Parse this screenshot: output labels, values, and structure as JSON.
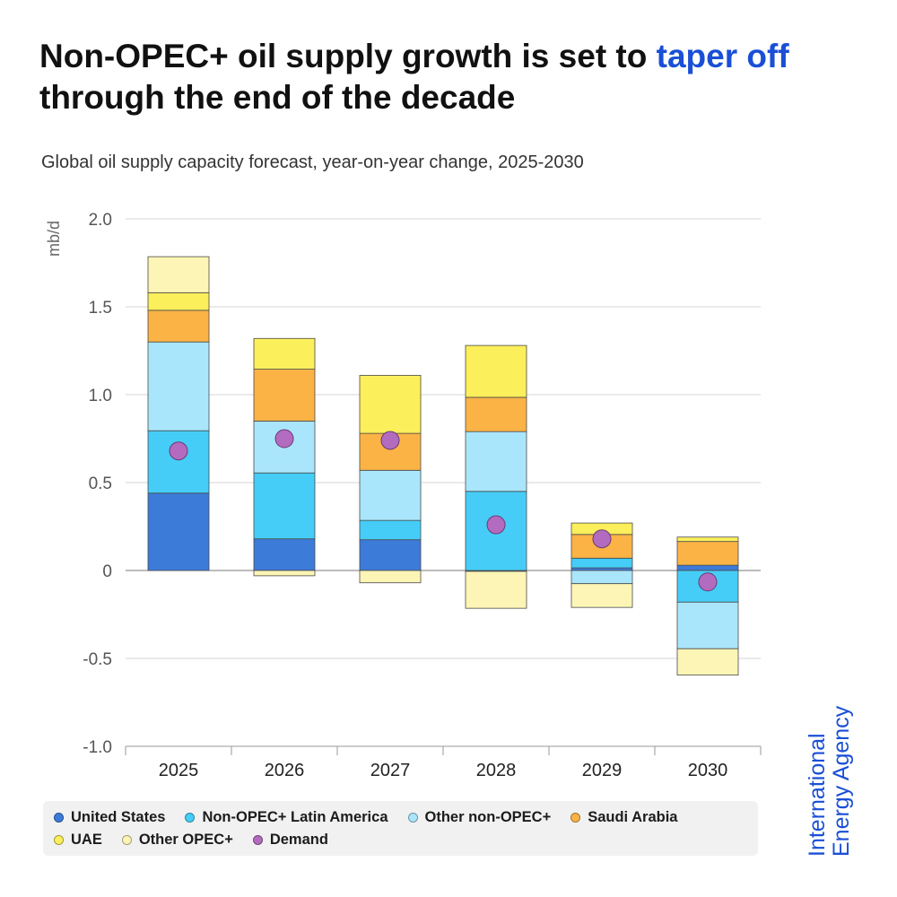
{
  "title": {
    "prefix": "Non-OPEC+ oil supply growth is set to ",
    "highlight": "taper off",
    "suffix": " through the end of the decade"
  },
  "subtitle": "Global oil supply capacity forecast, year-on-year change, 2025-2030",
  "logo": {
    "line1": "International",
    "line2": "Energy Agency"
  },
  "colors": {
    "accent": "#1a4fd6",
    "united_states": "#3d7bd9",
    "latam": "#45cdf7",
    "other_non_opec": "#aae6fb",
    "saudi": "#fbb346",
    "uae": "#fbef5b",
    "other_opec": "#fdf5b5",
    "demand": "#b36bbf"
  },
  "chart_data": {
    "type": "bar",
    "stacked": true,
    "title": "Non-OPEC+ oil supply growth is set to taper off through the end of the decade",
    "subtitle": "Global oil supply capacity forecast, year-on-year change, 2025-2030",
    "xlabel": "",
    "ylabel": "mb/d",
    "ylim": [
      -1.0,
      2.0
    ],
    "yticks": [
      2.0,
      1.5,
      1.0,
      0.5,
      0,
      -0.5,
      -1.0
    ],
    "ytick_labels": [
      "2.0",
      "1.5",
      "1.0",
      "0.5",
      "0",
      "-0.5",
      "-1.0"
    ],
    "grid": true,
    "legend_position": "bottom",
    "categories": [
      "2025",
      "2026",
      "2027",
      "2028",
      "2029",
      "2030"
    ],
    "series": [
      {
        "name": "United States",
        "key": "united_states",
        "values": [
          0.44,
          0.18,
          0.175,
          -0.005,
          0.015,
          0.03
        ]
      },
      {
        "name": "Non-OPEC+ Latin America",
        "key": "latam",
        "values": [
          0.355,
          0.375,
          0.11,
          0.45,
          0.055,
          -0.18
        ]
      },
      {
        "name": "Other non-OPEC+",
        "key": "other_non_opec",
        "values": [
          0.505,
          0.295,
          0.285,
          0.34,
          -0.075,
          -0.265
        ]
      },
      {
        "name": "Saudi Arabia",
        "key": "saudi",
        "values": [
          0.18,
          0.295,
          0.21,
          0.195,
          0.135,
          0.135
        ]
      },
      {
        "name": "UAE",
        "key": "uae",
        "values": [
          0.1,
          0.175,
          0.33,
          0.295,
          0.065,
          0.025
        ]
      },
      {
        "name": "Other OPEC+",
        "key": "other_opec",
        "values": [
          0.205,
          -0.03,
          -0.07,
          -0.21,
          -0.135,
          -0.15
        ]
      }
    ],
    "demand": {
      "name": "Demand",
      "key": "demand",
      "values": [
        0.68,
        0.75,
        0.74,
        0.26,
        0.18,
        -0.065
      ]
    }
  }
}
